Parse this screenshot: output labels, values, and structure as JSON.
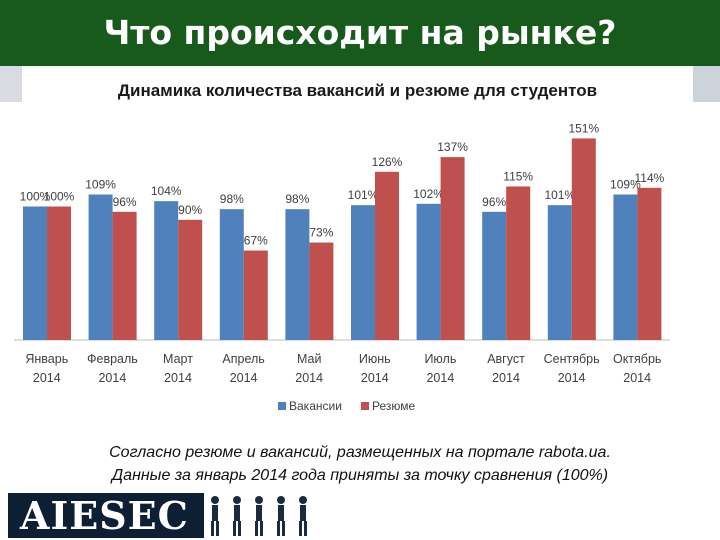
{
  "header": {
    "title": "Что происходит на рынке?"
  },
  "caption": {
    "line1": "Согласно резюме и вакансий, размещенных на портале rabota.ua.",
    "line2": "Данные за январь 2014 года приняты за точку сравнения (100%)"
  },
  "logo": {
    "text": "AIESEC"
  },
  "colors": {
    "header_bg": "#175a1b",
    "vacancies": "#4f81bd",
    "resumes": "#c0504d",
    "logo_bg": "#0d1f33"
  },
  "chart_data": {
    "type": "bar",
    "title": "Динамика количества вакансий и резюме для студентов",
    "categories": [
      [
        "Январь",
        "2014"
      ],
      [
        "Февраль",
        "2014"
      ],
      [
        "Март",
        "2014"
      ],
      [
        "Апрель",
        "2014"
      ],
      [
        "Май",
        "2014"
      ],
      [
        "Июнь",
        "2014"
      ],
      [
        "Июль",
        "2014"
      ],
      [
        "Август",
        "2014"
      ],
      [
        "Сентябрь",
        "2014"
      ],
      [
        "Октябрь",
        "2014"
      ]
    ],
    "series": [
      {
        "name": "Вакансии",
        "color": "#4f81bd",
        "values": [
          100,
          109,
          104,
          98,
          98,
          101,
          102,
          96,
          101,
          109
        ]
      },
      {
        "name": "Резюме",
        "color": "#c0504d",
        "values": [
          100,
          96,
          90,
          67,
          73,
          126,
          137,
          115,
          151,
          114
        ]
      }
    ],
    "value_suffix": "%",
    "ylim": [
      0,
      160
    ],
    "grid": false,
    "legend_position": "bottom"
  }
}
